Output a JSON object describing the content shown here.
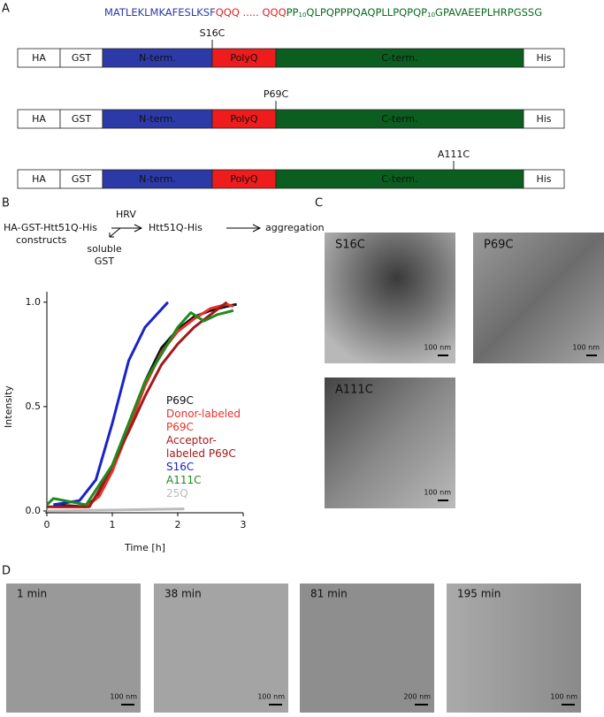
{
  "panels": {
    "a": "A",
    "b": "B",
    "c": "C",
    "d": "D"
  },
  "sequence": {
    "n_term": "MATLEKLMKAFESLKSF",
    "polyq": "QQQ ..... QQQ",
    "c_term": [
      "PP",
      "10",
      "QLPQPPPQAQPLLPQPQP",
      "10",
      "GPAVAEEPLHRPGSSG"
    ]
  },
  "domains": [
    "HA",
    "GST",
    "N-term.",
    "PolyQ",
    "C-term.",
    "His"
  ],
  "constructs": [
    "S16C",
    "P69C",
    "A111C"
  ],
  "scheme": {
    "construct": [
      "HA-GST-Htt51Q-His",
      "constructs"
    ],
    "enzyme": "HRV",
    "byproduct": [
      "soluble",
      "GST"
    ],
    "product": "Htt51Q-His",
    "result": "aggregation"
  },
  "chart_data": {
    "type": "line",
    "x_label": "Time [h]",
    "y_label": "Intensity",
    "xlim": [
      0,
      3
    ],
    "ylim": [
      0,
      1.05
    ],
    "xticks": [
      0,
      1,
      2,
      3
    ],
    "yticks": [
      {
        "value": 0,
        "label": "0.0"
      },
      0.5,
      {
        "value": 1,
        "label": "1.0"
      }
    ],
    "series": [
      {
        "name": "P69C",
        "color": "#111111",
        "x": [
          0.1,
          0.6,
          0.8,
          1.0,
          1.25,
          1.5,
          1.75,
          2.0,
          2.25,
          2.5,
          2.75,
          2.9
        ],
        "values": [
          0.03,
          0.02,
          0.08,
          0.2,
          0.4,
          0.62,
          0.78,
          0.87,
          0.93,
          0.96,
          0.98,
          0.99
        ]
      },
      {
        "name": "Donor-labeled P69C",
        "color": "#e8322a",
        "x": [
          0.1,
          0.6,
          0.8,
          1.0,
          1.25,
          1.5,
          1.75,
          2.0,
          2.25,
          2.5,
          2.75,
          2.85
        ],
        "values": [
          0.02,
          0.02,
          0.07,
          0.19,
          0.39,
          0.6,
          0.76,
          0.86,
          0.92,
          0.97,
          0.99,
          0.98
        ]
      },
      {
        "name": "Acceptor-labeled P69C",
        "color": "#a11a1a",
        "x": [
          0.0,
          0.65,
          0.8,
          1.0,
          1.25,
          1.5,
          1.75,
          2.0,
          2.25,
          2.5,
          2.75
        ],
        "values": [
          0.02,
          0.02,
          0.1,
          0.22,
          0.38,
          0.55,
          0.7,
          0.8,
          0.88,
          0.94,
          1.0
        ]
      },
      {
        "name": "S16C",
        "color": "#1a22c8",
        "x": [
          0.1,
          0.5,
          0.75,
          1.0,
          1.25,
          1.5,
          1.85
        ],
        "values": [
          0.03,
          0.05,
          0.15,
          0.42,
          0.72,
          0.88,
          1.0
        ]
      },
      {
        "name": "A111C",
        "color": "#1f8a1f",
        "x": [
          0.0,
          0.1,
          0.6,
          1.0,
          1.5,
          2.0,
          2.2,
          2.4,
          2.6,
          2.85
        ],
        "values": [
          0.03,
          0.06,
          0.03,
          0.22,
          0.62,
          0.88,
          0.95,
          0.91,
          0.94,
          0.96
        ]
      },
      {
        "name": "25Q",
        "color": "#bbbbbb",
        "x": [
          0.0,
          2.1
        ],
        "values": [
          0.0,
          0.01
        ]
      }
    ]
  },
  "images_c": [
    {
      "label": "S16C",
      "scale": "100 nm"
    },
    {
      "label": "P69C",
      "scale": "100 nm"
    },
    {
      "label": "A111C",
      "scale": "100 nm"
    }
  ],
  "images_d": [
    {
      "label": "1 min",
      "scale": "100 nm"
    },
    {
      "label": "38 min",
      "scale": "100 nm"
    },
    {
      "label": "81 min",
      "scale": "200 nm"
    },
    {
      "label": "195 min",
      "scale": "100 nm"
    }
  ]
}
